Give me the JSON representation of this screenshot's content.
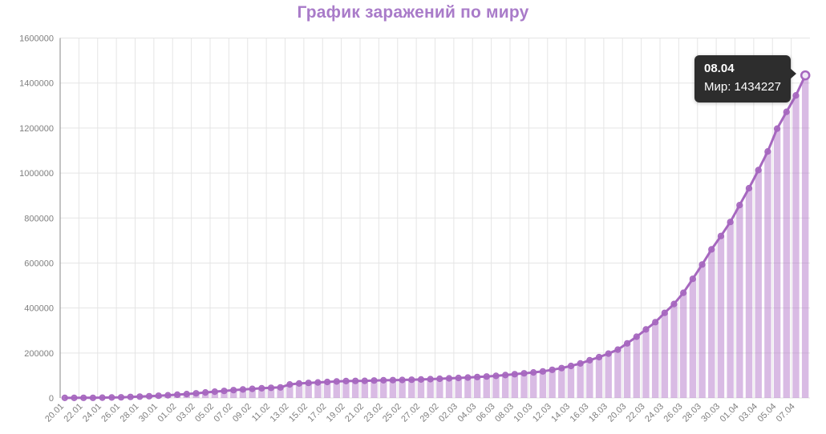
{
  "title": "График заражений по миру",
  "tooltip": {
    "title": "08.04",
    "label": "Мир: 1434227"
  },
  "colors": {
    "accent": "#a97bc9",
    "series": "#a667bf",
    "bar": "#ab68c4",
    "grid": "#e5e5e5",
    "axis": "#9b9b9b",
    "tick_text": "#7f7f7f",
    "tooltip_bg": "#2d2d2d",
    "tooltip_text": "#ffffff",
    "active_point_fill": "#f1e8f7"
  },
  "chart_data": {
    "type": "bar",
    "title": "График заражений по миру",
    "series_name": "Мир",
    "legend_position": "none",
    "grid": true,
    "ylim": [
      0,
      1600000
    ],
    "ytick_step": 200000,
    "ytick_labels": [
      "0",
      "200000",
      "400000",
      "600000",
      "800000",
      "1000000",
      "1200000",
      "1400000",
      "1600000"
    ],
    "xtick_every": 2,
    "xtick_labels": [
      "20.01",
      "22.01",
      "24.01",
      "26.01",
      "28.01",
      "30.01",
      "01.02",
      "03.02",
      "05.02",
      "07.02",
      "09.02",
      "11.02",
      "13.02",
      "15.02",
      "17.02",
      "19.02",
      "21.02",
      "23.02",
      "25.02",
      "27.02",
      "29.02",
      "02.03",
      "04.03",
      "06.03",
      "08.03",
      "10.03",
      "12.03",
      "14.03",
      "16.03",
      "18.03",
      "20.03",
      "22.03",
      "24.03",
      "26.03",
      "28.03",
      "30.03",
      "01.04",
      "03.04",
      "05.04",
      "07.04"
    ],
    "categories": [
      "20.01",
      "21.01",
      "22.01",
      "23.01",
      "24.01",
      "25.01",
      "26.01",
      "27.01",
      "28.01",
      "29.01",
      "30.01",
      "31.01",
      "01.02",
      "02.02",
      "03.02",
      "04.02",
      "05.02",
      "06.02",
      "07.02",
      "08.02",
      "09.02",
      "10.02",
      "11.02",
      "12.02",
      "13.02",
      "14.02",
      "15.02",
      "16.02",
      "17.02",
      "18.02",
      "19.02",
      "20.02",
      "21.02",
      "22.02",
      "23.02",
      "24.02",
      "25.02",
      "26.02",
      "27.02",
      "28.02",
      "29.02",
      "01.03",
      "02.03",
      "03.03",
      "04.03",
      "05.03",
      "06.03",
      "07.03",
      "08.03",
      "09.03",
      "10.03",
      "11.03",
      "12.03",
      "13.03",
      "14.03",
      "15.03",
      "16.03",
      "17.03",
      "18.03",
      "19.03",
      "20.03",
      "21.03",
      "22.03",
      "23.03",
      "24.03",
      "25.03",
      "26.03",
      "27.03",
      "28.03",
      "29.03",
      "30.03",
      "31.03",
      "01.04",
      "02.04",
      "03.04",
      "04.04",
      "05.04",
      "06.04",
      "07.04",
      "08.04"
    ],
    "values": [
      282,
      314,
      581,
      846,
      1320,
      2014,
      2798,
      4593,
      6065,
      7818,
      9826,
      11953,
      14557,
      17391,
      20630,
      24554,
      28276,
      31481,
      34886,
      37558,
      40554,
      43103,
      45171,
      46997,
      60328,
      64543,
      66887,
      69030,
      71224,
      73260,
      75138,
      75641,
      76199,
      77673,
      78651,
      79205,
      80147,
      81109,
      82294,
      83652,
      85403,
      87137,
      88948,
      90869,
      93090,
      95324,
      98192,
      101927,
      105586,
      109577,
      113702,
      118319,
      125260,
      132758,
      142534,
      153517,
      167515,
      181527,
      197142,
      214910,
      242708,
      272166,
      304524,
      336953,
      378235,
      418045,
      467653,
      529591,
      593291,
      660693,
      720117,
      782365,
      857487,
      932605,
      1013157,
      1095917,
      1197405,
      1272115,
      1345048,
      1434227
    ],
    "highlight_index": 79,
    "tooltip_on_highlight": {
      "title": "08.04",
      "label": "Мир: 1434227"
    }
  }
}
